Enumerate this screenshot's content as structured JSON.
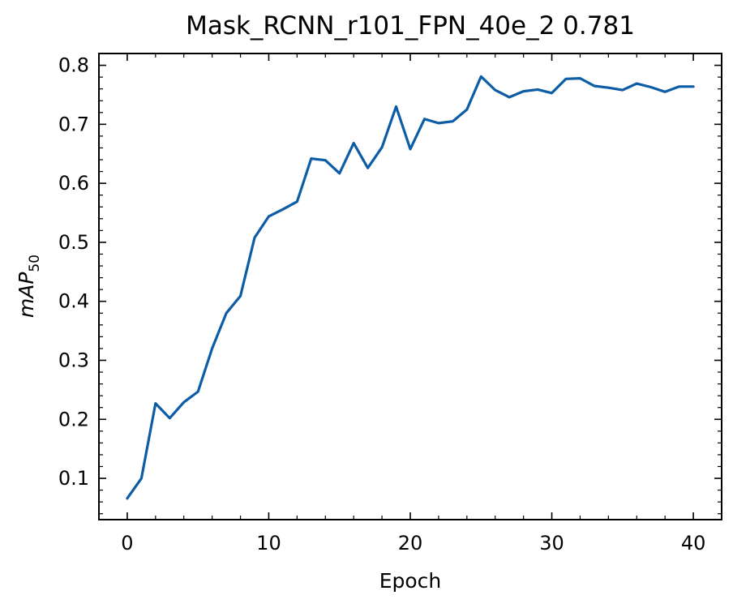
{
  "chart_data": {
    "type": "line",
    "title": "Mask_RCNN_r101_FPN_40e_2 0.781",
    "xlabel": "Epoch",
    "ylabel": "mAP",
    "ylabel_subscript": "50",
    "xlim": [
      -2,
      42
    ],
    "ylim": [
      0.03,
      0.82
    ],
    "xticks": [
      0,
      10,
      20,
      30,
      40
    ],
    "xtick_labels": [
      "0",
      "10",
      "20",
      "30",
      "40"
    ],
    "yticks": [
      0.1,
      0.2,
      0.3,
      0.4,
      0.5,
      0.6,
      0.7,
      0.8
    ],
    "ytick_labels": [
      "0.1",
      "0.2",
      "0.3",
      "0.4",
      "0.5",
      "0.6",
      "0.7",
      "0.8"
    ],
    "grid": false,
    "series": [
      {
        "color": "#0c5da5",
        "x": [
          0,
          1,
          2,
          3,
          4,
          5,
          6,
          7,
          8,
          9,
          10,
          11,
          12,
          13,
          14,
          15,
          16,
          17,
          18,
          19,
          20,
          21,
          22,
          23,
          24,
          25,
          26,
          27,
          28,
          29,
          30,
          31,
          32,
          33,
          34,
          35,
          36,
          37,
          38,
          39,
          40
        ],
        "y": [
          0.066,
          0.1,
          0.227,
          0.202,
          0.229,
          0.247,
          0.32,
          0.38,
          0.409,
          0.508,
          0.544,
          0.556,
          0.569,
          0.642,
          0.639,
          0.617,
          0.668,
          0.626,
          0.661,
          0.73,
          0.658,
          0.709,
          0.702,
          0.705,
          0.725,
          0.781,
          0.758,
          0.746,
          0.756,
          0.759,
          0.753,
          0.777,
          0.778,
          0.765,
          0.762,
          0.758,
          0.769,
          0.763,
          0.755,
          0.764,
          0.764
        ]
      }
    ]
  }
}
